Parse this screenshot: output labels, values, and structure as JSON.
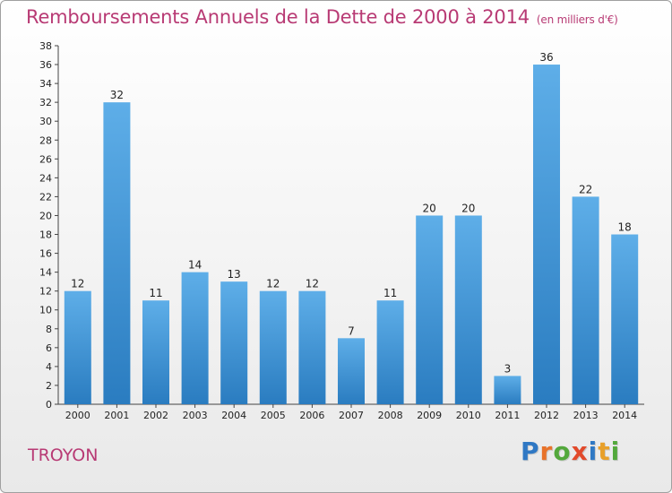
{
  "title": "Remboursements Annuels de la Dette de 2000 à 2014",
  "subtitle": "(en milliers d'€)",
  "commune": "TROYON",
  "brand": {
    "text": "Proxiti",
    "letters": [
      {
        "ch": "P",
        "color": "#2f78c4"
      },
      {
        "ch": "r",
        "color": "#e8732a"
      },
      {
        "ch": "o",
        "color": "#53a83c"
      },
      {
        "ch": "x",
        "color": "#e24a2b"
      },
      {
        "ch": "i",
        "color": "#2f78c4"
      },
      {
        "ch": "t",
        "color": "#e8a02a"
      },
      {
        "ch": "i",
        "color": "#53a83c"
      }
    ]
  },
  "colors": {
    "bar_top": "#5eaee8",
    "bar_bottom": "#2a7cc0",
    "axis": "#444444",
    "grid": "#cfcfcf",
    "title": "#b83a74"
  },
  "chart_data": {
    "type": "bar",
    "categories": [
      "2000",
      "2001",
      "2002",
      "2003",
      "2004",
      "2005",
      "2006",
      "2007",
      "2008",
      "2009",
      "2010",
      "2011",
      "2012",
      "2013",
      "2014"
    ],
    "values": [
      12,
      32,
      11,
      14,
      13,
      12,
      12,
      7,
      11,
      20,
      20,
      3,
      36,
      22,
      18
    ],
    "title": "Remboursements Annuels de la Dette de 2000 à 2014",
    "ylim": [
      0,
      38
    ],
    "yticks": [
      0,
      2,
      4,
      6,
      8,
      10,
      12,
      14,
      16,
      18,
      20,
      22,
      24,
      26,
      28,
      30,
      32,
      34,
      36,
      38
    ],
    "grid": false,
    "data_labels": true
  }
}
